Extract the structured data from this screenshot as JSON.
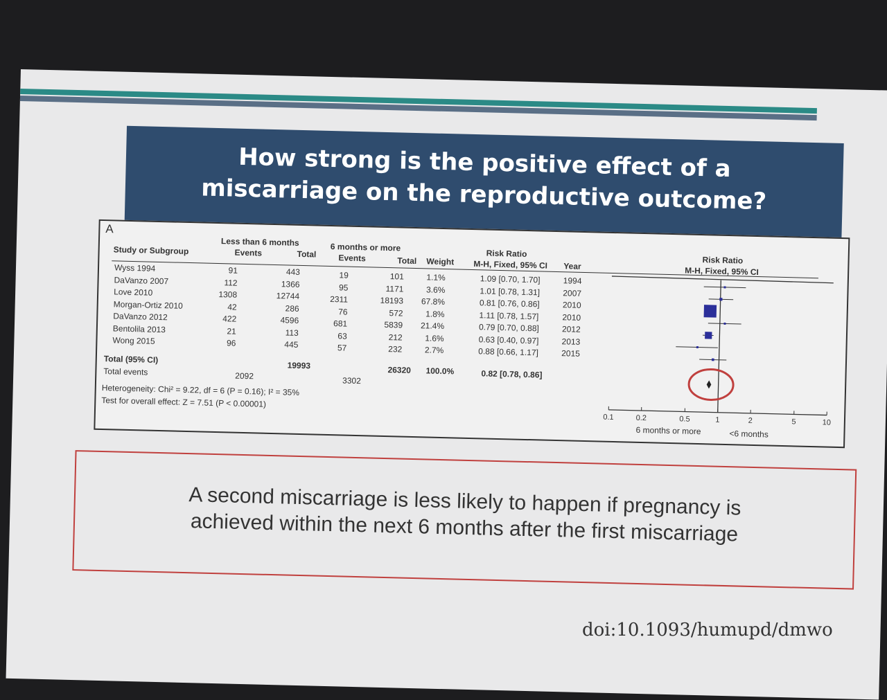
{
  "title_line1": "How strong is the positive effect of a",
  "title_line2": "miscarriage on the reproductive outcome?",
  "panel_label": "A",
  "table": {
    "group1": "Less than 6 months",
    "group2": "6 months or more",
    "col_study": "Study or Subgroup",
    "col_events": "Events",
    "col_total": "Total",
    "col_weight": "Weight",
    "col_rr_title": "Risk Ratio",
    "col_rr_method": "M-H, Fixed, 95% CI",
    "col_year": "Year",
    "rows": [
      {
        "study": "Wyss 1994",
        "e1": "91",
        "t1": "443",
        "e2": "19",
        "t2": "101",
        "weight": "1.1%",
        "rr": "1.09 [0.70, 1.70]",
        "year": "1994"
      },
      {
        "study": "DaVanzo 2007",
        "e1": "112",
        "t1": "1366",
        "e2": "95",
        "t2": "1171",
        "weight": "3.6%",
        "rr": "1.01 [0.78, 1.31]",
        "year": "2007"
      },
      {
        "study": "Love 2010",
        "e1": "1308",
        "t1": "12744",
        "e2": "2311",
        "t2": "18193",
        "weight": "67.8%",
        "rr": "0.81 [0.76, 0.86]",
        "year": "2010"
      },
      {
        "study": "Morgan-Ortiz 2010",
        "e1": "42",
        "t1": "286",
        "e2": "76",
        "t2": "572",
        "weight": "1.8%",
        "rr": "1.11 [0.78, 1.57]",
        "year": "2010"
      },
      {
        "study": "DaVanzo 2012",
        "e1": "422",
        "t1": "4596",
        "e2": "681",
        "t2": "5839",
        "weight": "21.4%",
        "rr": "0.79 [0.70, 0.88]",
        "year": "2012"
      },
      {
        "study": "Bentolila 2013",
        "e1": "21",
        "t1": "113",
        "e2": "63",
        "t2": "212",
        "weight": "1.6%",
        "rr": "0.63 [0.40, 0.97]",
        "year": "2013"
      },
      {
        "study": "Wong 2015",
        "e1": "96",
        "t1": "445",
        "e2": "57",
        "t2": "232",
        "weight": "2.7%",
        "rr": "0.88 [0.66, 1.17]",
        "year": "2015"
      }
    ],
    "total_label": "Total (95% CI)",
    "total_t1": "19993",
    "total_t2": "26320",
    "total_weight": "100.0%",
    "total_rr": "0.82 [0.78, 0.86]",
    "total_events_label": "Total events",
    "total_e1": "2092",
    "total_e2": "3302",
    "heterogeneity": "Heterogeneity: Chi² = 9.22, df = 6 (P = 0.16); I² = 35%",
    "overall_effect": "Test for overall effect: Z = 7.51 (P < 0.00001)"
  },
  "chart_data": {
    "type": "forest",
    "title": "Risk Ratio",
    "subtitle": "M-H, Fixed, 95% CI",
    "x_scale": "log",
    "xlim": [
      0.1,
      10
    ],
    "x_ticks": [
      "0.1",
      "0.2",
      "0.5",
      "1",
      "2",
      "5",
      "10"
    ],
    "xlabel_left": "6 months or more",
    "xlabel_right": "<6 months",
    "studies": [
      {
        "rr": 1.09,
        "lo": 0.7,
        "hi": 1.7,
        "weight": 1.1
      },
      {
        "rr": 1.01,
        "lo": 0.78,
        "hi": 1.31,
        "weight": 3.6
      },
      {
        "rr": 0.81,
        "lo": 0.76,
        "hi": 0.86,
        "weight": 67.8
      },
      {
        "rr": 1.11,
        "lo": 0.78,
        "hi": 1.57,
        "weight": 1.8
      },
      {
        "rr": 0.79,
        "lo": 0.7,
        "hi": 0.88,
        "weight": 21.4
      },
      {
        "rr": 0.63,
        "lo": 0.4,
        "hi": 0.97,
        "weight": 1.6
      },
      {
        "rr": 0.88,
        "lo": 0.66,
        "hi": 1.17,
        "weight": 2.7
      }
    ],
    "pooled": {
      "rr": 0.82,
      "lo": 0.78,
      "hi": 0.86
    },
    "marker_color": "#2b2f9a",
    "highlight_color": "#c0403e"
  },
  "note_line1": "A second miscarriage is less likely to happen if pregnancy is",
  "note_line2": "achieved within the next 6 months after the first miscarriage",
  "doi": "doi:10.1093/humupd/dmwo"
}
